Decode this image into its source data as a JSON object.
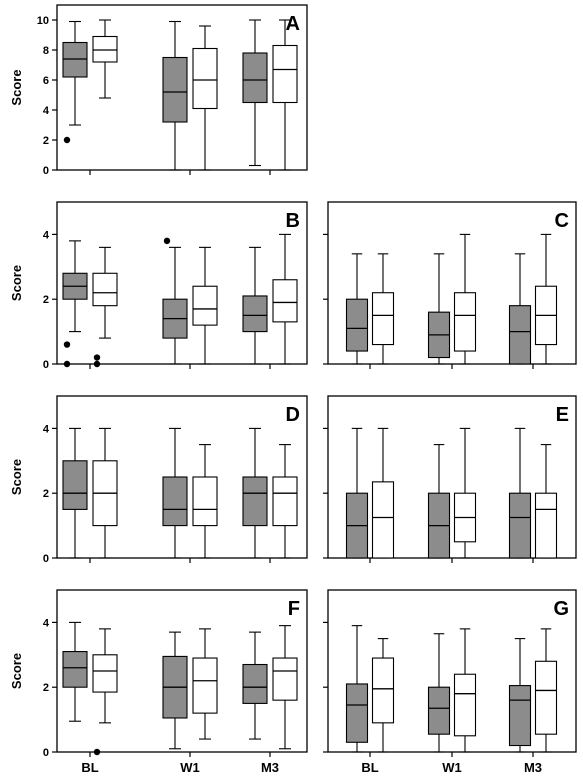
{
  "colors": {
    "group1_fill": "#8c8c8c",
    "group2_fill": "#ffffff",
    "stroke": "#000000"
  },
  "chart_data": [
    {
      "type": "box",
      "title": "A",
      "ylabel": "Score",
      "ylim": [
        0,
        11
      ],
      "yticks": [
        "0",
        "2",
        "4",
        "6",
        "8",
        "10"
      ],
      "categories": [
        "BL",
        "W1",
        "M3"
      ],
      "boxes": [
        {
          "cat": "BL",
          "group": 1,
          "min": 3.0,
          "q1": 6.2,
          "median": 7.4,
          "q3": 8.5,
          "max": 9.9,
          "outliers": [
            2.0
          ]
        },
        {
          "cat": "BL",
          "group": 2,
          "min": 4.8,
          "q1": 7.2,
          "median": 8.0,
          "q3": 8.9,
          "max": 10.0,
          "outliers": []
        },
        {
          "cat": "W1",
          "group": 1,
          "min": 0.0,
          "q1": 3.2,
          "median": 5.2,
          "q3": 7.5,
          "max": 9.9,
          "outliers": []
        },
        {
          "cat": "W1",
          "group": 2,
          "min": 0.0,
          "q1": 4.1,
          "median": 6.0,
          "q3": 8.1,
          "max": 9.6,
          "outliers": []
        },
        {
          "cat": "M3",
          "group": 1,
          "min": 0.3,
          "q1": 4.5,
          "median": 6.0,
          "q3": 7.8,
          "max": 10.0,
          "outliers": []
        },
        {
          "cat": "M3",
          "group": 2,
          "min": 0.0,
          "q1": 4.5,
          "median": 6.7,
          "q3": 8.3,
          "max": 10.0,
          "outliers": []
        }
      ]
    },
    {
      "type": "box",
      "title": "B",
      "ylabel": "Score",
      "ylim": [
        0,
        5
      ],
      "yticks": [
        "0",
        "2",
        "4"
      ],
      "categories": [
        "BL",
        "W1",
        "M3"
      ],
      "boxes": [
        {
          "cat": "BL",
          "group": 1,
          "min": 1.0,
          "q1": 2.0,
          "median": 2.4,
          "q3": 2.8,
          "max": 3.8,
          "outliers": [
            0.6,
            0.0
          ]
        },
        {
          "cat": "BL",
          "group": 2,
          "min": 0.8,
          "q1": 1.8,
          "median": 2.2,
          "q3": 2.8,
          "max": 3.6,
          "outliers": [
            0.0,
            0.2
          ]
        },
        {
          "cat": "W1",
          "group": 1,
          "min": 0.0,
          "q1": 0.8,
          "median": 1.4,
          "q3": 2.0,
          "max": 3.6,
          "outliers": [
            3.8
          ]
        },
        {
          "cat": "W1",
          "group": 2,
          "min": 0.0,
          "q1": 1.2,
          "median": 1.7,
          "q3": 2.4,
          "max": 3.6,
          "outliers": []
        },
        {
          "cat": "M3",
          "group": 1,
          "min": 0.0,
          "q1": 1.0,
          "median": 1.5,
          "q3": 2.1,
          "max": 3.6,
          "outliers": []
        },
        {
          "cat": "M3",
          "group": 2,
          "min": 0.0,
          "q1": 1.3,
          "median": 1.9,
          "q3": 2.6,
          "max": 4.0,
          "outliers": []
        }
      ]
    },
    {
      "type": "box",
      "title": "C",
      "ylabel": "",
      "ylim": [
        0,
        5
      ],
      "yticks": [],
      "categories": [
        "BL",
        "W1",
        "M3"
      ],
      "boxes": [
        {
          "cat": "BL",
          "group": 1,
          "min": 0.0,
          "q1": 0.4,
          "median": 1.1,
          "q3": 2.0,
          "max": 3.4,
          "outliers": []
        },
        {
          "cat": "BL",
          "group": 2,
          "min": 0.0,
          "q1": 0.6,
          "median": 1.5,
          "q3": 2.2,
          "max": 3.4,
          "outliers": []
        },
        {
          "cat": "W1",
          "group": 1,
          "min": 0.0,
          "q1": 0.2,
          "median": 0.9,
          "q3": 1.6,
          "max": 3.4,
          "outliers": []
        },
        {
          "cat": "W1",
          "group": 2,
          "min": 0.0,
          "q1": 0.4,
          "median": 1.5,
          "q3": 2.2,
          "max": 4.0,
          "outliers": []
        },
        {
          "cat": "M3",
          "group": 1,
          "min": 0.0,
          "q1": 0.0,
          "median": 1.0,
          "q3": 1.8,
          "max": 3.4,
          "outliers": []
        },
        {
          "cat": "M3",
          "group": 2,
          "min": 0.0,
          "q1": 0.6,
          "median": 1.5,
          "q3": 2.4,
          "max": 4.0,
          "outliers": []
        }
      ]
    },
    {
      "type": "box",
      "title": "D",
      "ylabel": "Score",
      "ylim": [
        0,
        5
      ],
      "yticks": [
        "0",
        "2",
        "4"
      ],
      "categories": [
        "BL",
        "W1",
        "M3"
      ],
      "boxes": [
        {
          "cat": "BL",
          "group": 1,
          "min": 0.0,
          "q1": 1.5,
          "median": 2.0,
          "q3": 3.0,
          "max": 4.0,
          "outliers": []
        },
        {
          "cat": "BL",
          "group": 2,
          "min": 0.0,
          "q1": 1.0,
          "median": 2.0,
          "q3": 3.0,
          "max": 4.0,
          "outliers": []
        },
        {
          "cat": "W1",
          "group": 1,
          "min": 0.0,
          "q1": 1.0,
          "median": 1.5,
          "q3": 2.5,
          "max": 4.0,
          "outliers": []
        },
        {
          "cat": "W1",
          "group": 2,
          "min": 0.0,
          "q1": 1.0,
          "median": 1.5,
          "q3": 2.5,
          "max": 3.5,
          "outliers": []
        },
        {
          "cat": "M3",
          "group": 1,
          "min": 0.0,
          "q1": 1.0,
          "median": 2.0,
          "q3": 2.5,
          "max": 4.0,
          "outliers": []
        },
        {
          "cat": "M3",
          "group": 2,
          "min": 0.0,
          "q1": 1.0,
          "median": 2.0,
          "q3": 2.5,
          "max": 3.5,
          "outliers": []
        }
      ]
    },
    {
      "type": "box",
      "title": "E",
      "ylabel": "",
      "ylim": [
        0,
        5
      ],
      "yticks": [],
      "categories": [
        "BL",
        "W1",
        "M3"
      ],
      "boxes": [
        {
          "cat": "BL",
          "group": 1,
          "min": 0.0,
          "q1": 0.0,
          "median": 1.0,
          "q3": 2.0,
          "max": 4.0,
          "outliers": []
        },
        {
          "cat": "BL",
          "group": 2,
          "min": 0.0,
          "q1": 0.0,
          "median": 1.25,
          "q3": 2.35,
          "max": 4.0,
          "outliers": []
        },
        {
          "cat": "W1",
          "group": 1,
          "min": 0.0,
          "q1": 0.0,
          "median": 1.0,
          "q3": 2.0,
          "max": 3.5,
          "outliers": []
        },
        {
          "cat": "W1",
          "group": 2,
          "min": 0.0,
          "q1": 0.5,
          "median": 1.25,
          "q3": 2.0,
          "max": 4.0,
          "outliers": []
        },
        {
          "cat": "M3",
          "group": 1,
          "min": 0.0,
          "q1": 0.0,
          "median": 1.25,
          "q3": 2.0,
          "max": 4.0,
          "outliers": []
        },
        {
          "cat": "M3",
          "group": 2,
          "min": 0.0,
          "q1": 0.0,
          "median": 1.5,
          "q3": 2.0,
          "max": 3.5,
          "outliers": []
        }
      ]
    },
    {
      "type": "box",
      "title": "F",
      "ylabel": "Score",
      "ylim": [
        0,
        5
      ],
      "yticks": [
        "0",
        "2",
        "4"
      ],
      "categories": [
        "BL",
        "W1",
        "M3"
      ],
      "xlabels": [
        "BL",
        "W1",
        "M3"
      ],
      "boxes": [
        {
          "cat": "BL",
          "group": 1,
          "min": 0.95,
          "q1": 2.0,
          "median": 2.6,
          "q3": 3.1,
          "max": 4.0,
          "outliers": []
        },
        {
          "cat": "BL",
          "group": 2,
          "min": 0.9,
          "q1": 1.85,
          "median": 2.5,
          "q3": 3.0,
          "max": 3.8,
          "outliers": [
            0.0
          ]
        },
        {
          "cat": "W1",
          "group": 1,
          "min": 0.1,
          "q1": 1.05,
          "median": 2.0,
          "q3": 2.95,
          "max": 3.7,
          "outliers": []
        },
        {
          "cat": "W1",
          "group": 2,
          "min": 0.4,
          "q1": 1.2,
          "median": 2.2,
          "q3": 2.9,
          "max": 3.8,
          "outliers": []
        },
        {
          "cat": "M3",
          "group": 1,
          "min": 0.4,
          "q1": 1.5,
          "median": 2.0,
          "q3": 2.7,
          "max": 3.7,
          "outliers": []
        },
        {
          "cat": "M3",
          "group": 2,
          "min": 0.1,
          "q1": 1.6,
          "median": 2.5,
          "q3": 2.9,
          "max": 3.9,
          "outliers": []
        }
      ]
    },
    {
      "type": "box",
      "title": "G",
      "ylabel": "",
      "ylim": [
        0,
        5
      ],
      "yticks": [],
      "categories": [
        "BL",
        "W1",
        "M3"
      ],
      "xlabels": [
        "BL",
        "W1",
        "M3"
      ],
      "boxes": [
        {
          "cat": "BL",
          "group": 1,
          "min": 0.0,
          "q1": 0.3,
          "median": 1.45,
          "q3": 2.1,
          "max": 3.9,
          "outliers": []
        },
        {
          "cat": "BL",
          "group": 2,
          "min": 0.0,
          "q1": 0.9,
          "median": 1.95,
          "q3": 2.9,
          "max": 3.5,
          "outliers": []
        },
        {
          "cat": "W1",
          "group": 1,
          "min": 0.0,
          "q1": 0.55,
          "median": 1.35,
          "q3": 2.0,
          "max": 3.65,
          "outliers": []
        },
        {
          "cat": "W1",
          "group": 2,
          "min": 0.0,
          "q1": 0.5,
          "median": 1.8,
          "q3": 2.4,
          "max": 3.8,
          "outliers": []
        },
        {
          "cat": "M3",
          "group": 1,
          "min": 0.0,
          "q1": 0.2,
          "median": 1.6,
          "q3": 2.05,
          "max": 3.5,
          "outliers": []
        },
        {
          "cat": "M3",
          "group": 2,
          "min": 0.0,
          "q1": 0.55,
          "median": 1.9,
          "q3": 2.8,
          "max": 3.8,
          "outliers": []
        }
      ]
    }
  ]
}
